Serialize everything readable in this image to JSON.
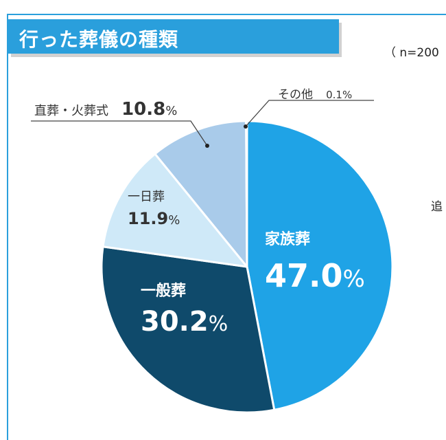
{
  "header": {
    "title": "行った葬儀の種類",
    "sample_note": "（ n=200",
    "cutoff_glyph": "追"
  },
  "chart_data": {
    "type": "pie",
    "title": "行った葬儀の種類",
    "unit": "%",
    "slices": [
      {
        "label": "家族葬",
        "value": 47.0,
        "value_text": "47.0",
        "color": "#1fa3e6"
      },
      {
        "label": "一般葬",
        "value": 30.2,
        "value_text": "30.2",
        "color": "#0f4a6b"
      },
      {
        "label": "一日葬",
        "value": 11.9,
        "value_text": "11.9",
        "color": "#cfe9f8"
      },
      {
        "label": "直葬・火葬式",
        "value": 10.8,
        "value_text": "10.8",
        "color": "#a9cbea"
      },
      {
        "label": "その他",
        "value": 0.1,
        "value_text": "0.1",
        "color": "#6a6a6a"
      }
    ],
    "start_angle_deg": 0,
    "direction": "clockwise"
  }
}
